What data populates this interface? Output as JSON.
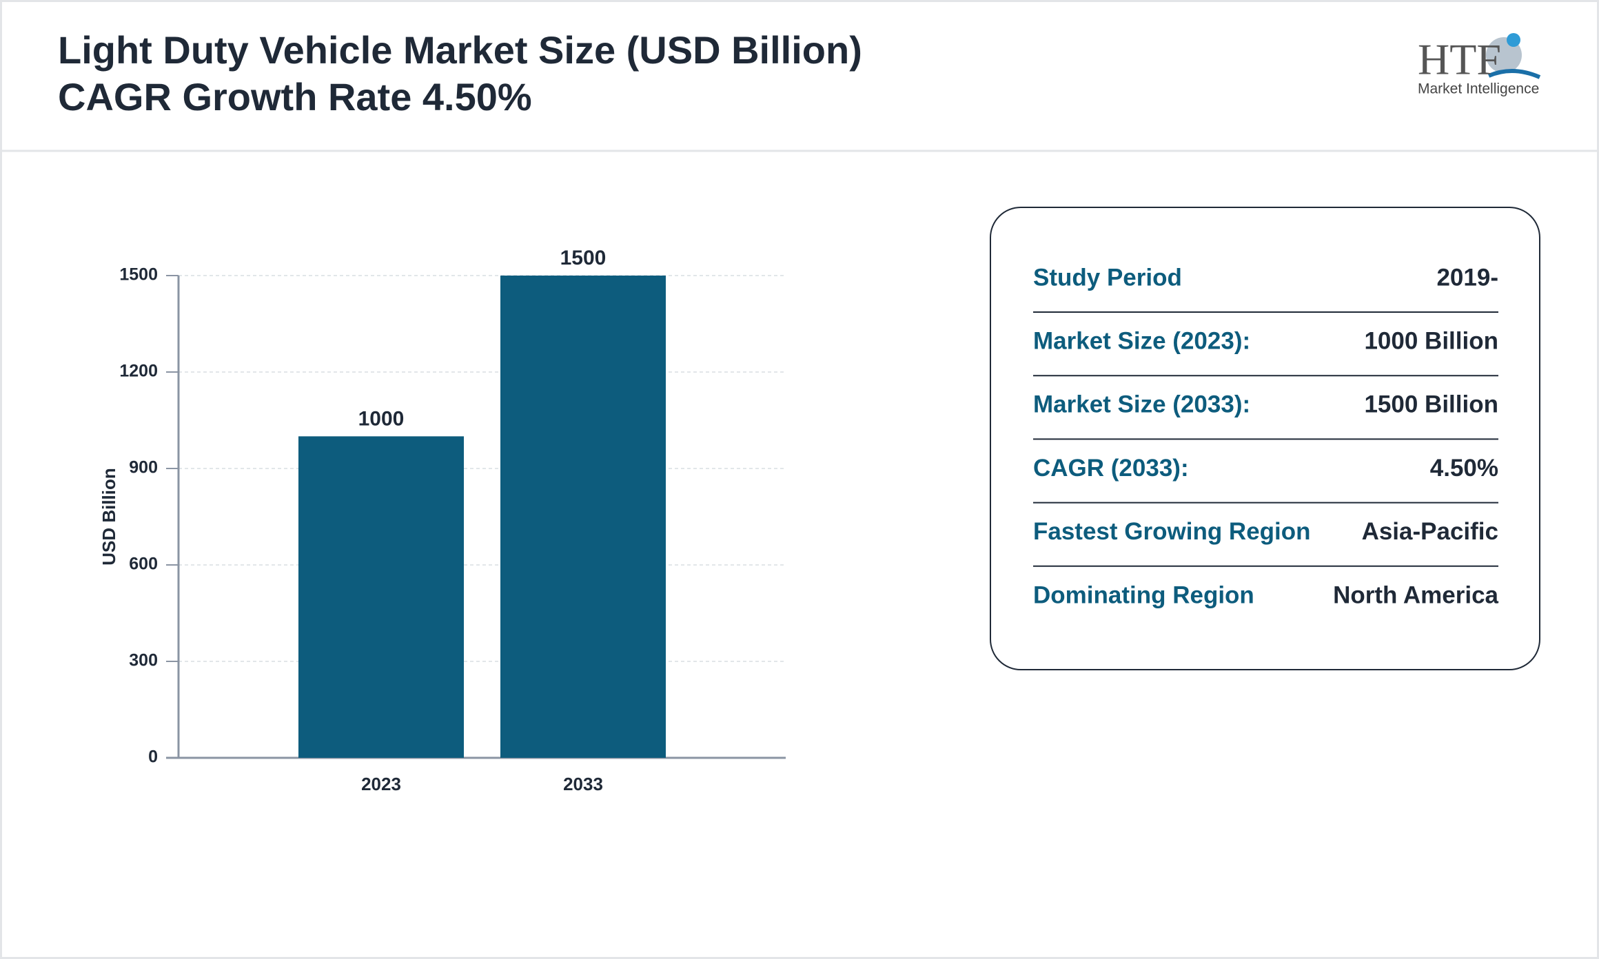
{
  "header": {
    "title": "Light Duty Vehicle Market Size (USD Billion)",
    "subtitle": "CAGR Growth Rate 4.50%"
  },
  "logo": {
    "brand": "HTF",
    "tagline": "Market Intelligence"
  },
  "chart_data": {
    "type": "bar",
    "y_label": "USD Billion",
    "categories": [
      "2023",
      "2033"
    ],
    "values": [
      1000,
      1500
    ],
    "color": "#0d5c7d",
    "ylim": [
      0,
      1500
    ],
    "yticks": [
      0,
      300,
      600,
      900,
      1200,
      1500
    ],
    "grid": true
  },
  "info": {
    "rows": [
      [
        "Study Period",
        "2019-"
      ],
      [
        "Market Size (2023):",
        "1000 Billion"
      ],
      [
        "Market Size (2033):",
        "1500 Billion"
      ],
      [
        "CAGR (2033):",
        "4.50%"
      ],
      [
        "Fastest Growing Region",
        "Asia-Pacific"
      ],
      [
        "Dominating Region",
        "North America"
      ]
    ]
  }
}
